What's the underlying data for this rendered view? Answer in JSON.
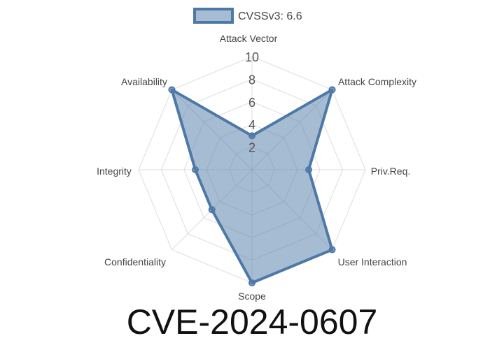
{
  "chart_data": {
    "type": "radar",
    "axes": [
      "Attack Vector",
      "Attack Complexity",
      "Priv.Req.",
      "User Interaction",
      "Scope",
      "Confidentiality",
      "Integrity",
      "Availability"
    ],
    "series": [
      {
        "name": "CVSSv3: 6.6",
        "values": [
          3,
          10,
          5,
          10,
          10,
          5,
          5,
          10
        ]
      }
    ],
    "r_ticks": [
      "2",
      "4",
      "6",
      "8",
      "10"
    ],
    "r_range": [
      0,
      10
    ],
    "grid": true,
    "legend": "top",
    "colors": {
      "line": "#4e79a7",
      "fill": "#4e79a7",
      "grid": "#dddddd"
    }
  },
  "title": "CVE-2024-0607"
}
